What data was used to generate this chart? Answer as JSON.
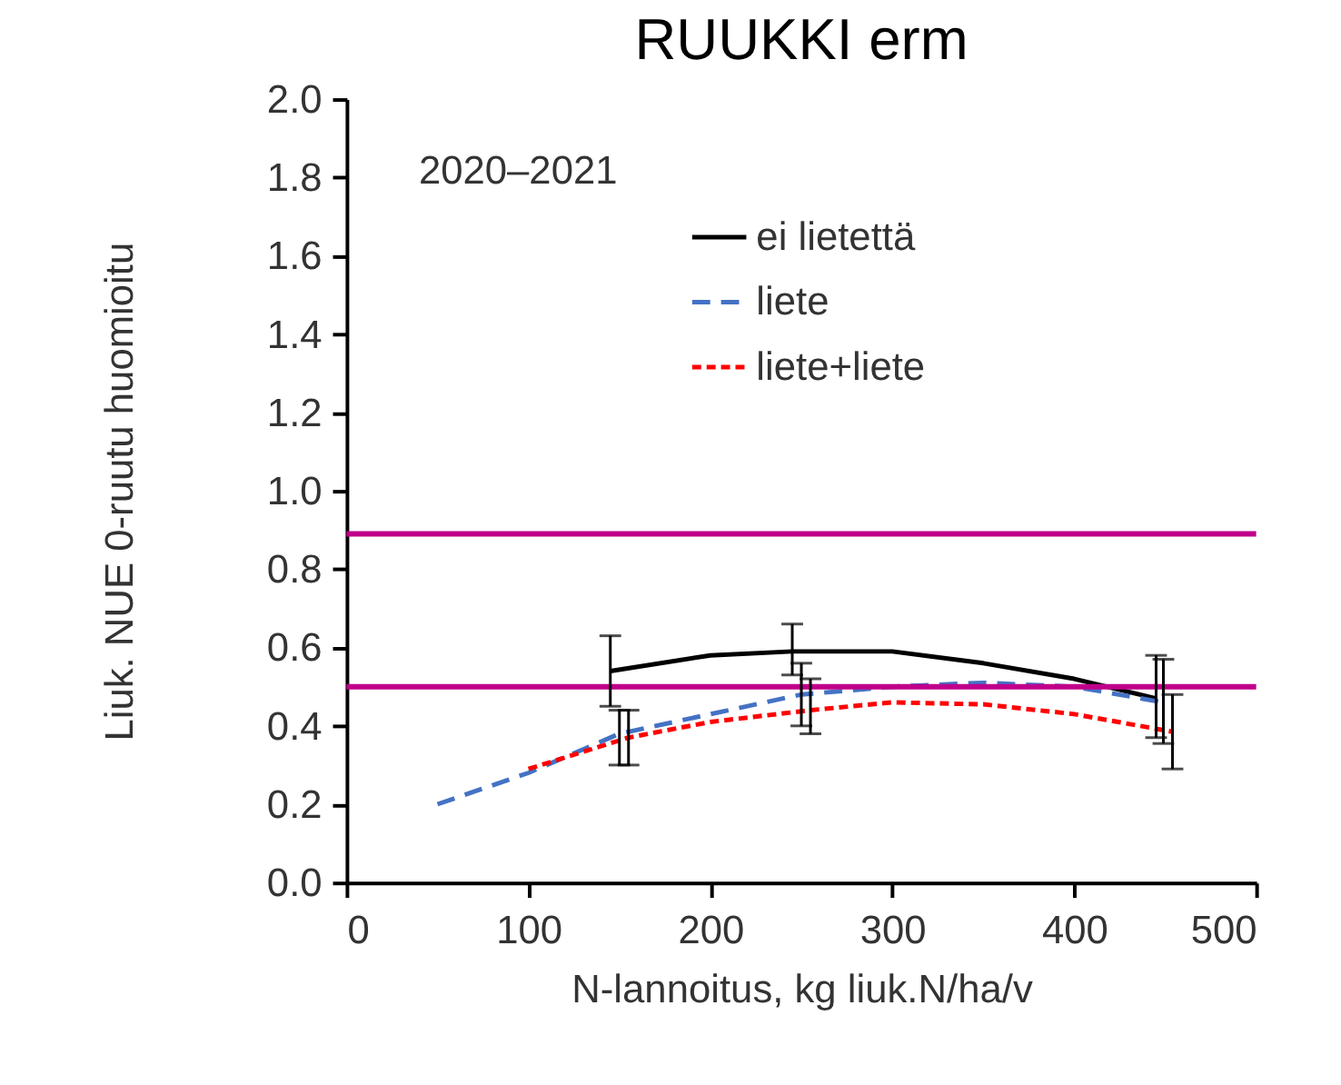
{
  "chart_data": {
    "type": "line",
    "title": "RUUKKI erm",
    "xlabel": "N-lannoitus, kg liuk.N/ha/v",
    "ylabel": "Liuk. NUE 0-ruutu huomioitu",
    "annotations": [
      "2020–2021"
    ],
    "xlim": [
      0,
      500
    ],
    "xticks": [
      0,
      100,
      200,
      300,
      400,
      500
    ],
    "ylim": [
      0,
      2
    ],
    "yticks": [
      {
        "value": 0,
        "label": "0.0"
      },
      {
        "value": 0.2,
        "label": "0.2"
      },
      {
        "value": 0.4,
        "label": "0.4"
      },
      {
        "value": 0.6,
        "label": "0.6"
      },
      {
        "value": 0.8,
        "label": "0.8"
      },
      {
        "value": 1,
        "label": "1.0"
      },
      {
        "value": 1.2,
        "label": "1.2"
      },
      {
        "value": 1.4,
        "label": "1.4"
      },
      {
        "value": 1.6,
        "label": "1.6"
      },
      {
        "value": 1.8,
        "label": "1.8"
      },
      {
        "value": 2,
        "label": "2.0"
      }
    ],
    "grid": false,
    "legend": "top right",
    "marker": "none",
    "series": [
      {
        "name": "ei lietettä",
        "color": "#000000",
        "line_style": "solid",
        "x": [
          145,
          200,
          245,
          300,
          350,
          400,
          445
        ],
        "values": [
          0.54,
          0.58,
          0.59,
          0.59,
          0.56,
          0.52,
          0.47
        ],
        "errors": [
          [
            0.45,
            0.63
          ],
          null,
          [
            0.53,
            0.66
          ],
          null,
          null,
          null,
          [
            0.37,
            0.58
          ]
        ]
      },
      {
        "name": "liete",
        "color": "#4472c4",
        "line_style": "dashed",
        "x": [
          50,
          100,
          150,
          200,
          250,
          300,
          350,
          400,
          449
        ],
        "values": [
          0.2,
          0.28,
          0.38,
          0.43,
          0.48,
          0.5,
          0.51,
          0.5,
          0.46
        ],
        "errors": [
          null,
          null,
          [
            0.3,
            0.44
          ],
          null,
          [
            0.4,
            0.56
          ],
          null,
          null,
          null,
          [
            0.355,
            0.57
          ]
        ]
      },
      {
        "name": "liete+liete",
        "color": "#ff0000",
        "line_style": "dotted",
        "x": [
          100,
          155,
          200,
          255,
          300,
          350,
          400,
          454
        ],
        "values": [
          0.29,
          0.37,
          0.41,
          0.44,
          0.46,
          0.455,
          0.43,
          0.385
        ],
        "errors": [
          null,
          [
            0.3,
            0.44
          ],
          null,
          [
            0.38,
            0.52
          ],
          null,
          null,
          null,
          [
            0.29,
            0.48
          ]
        ]
      }
    ],
    "ref_lines": [
      {
        "axis": "y",
        "value": 0.89,
        "color": "#c0008a"
      },
      {
        "axis": "y",
        "value": 0.5,
        "color": "#c0008a"
      }
    ]
  }
}
